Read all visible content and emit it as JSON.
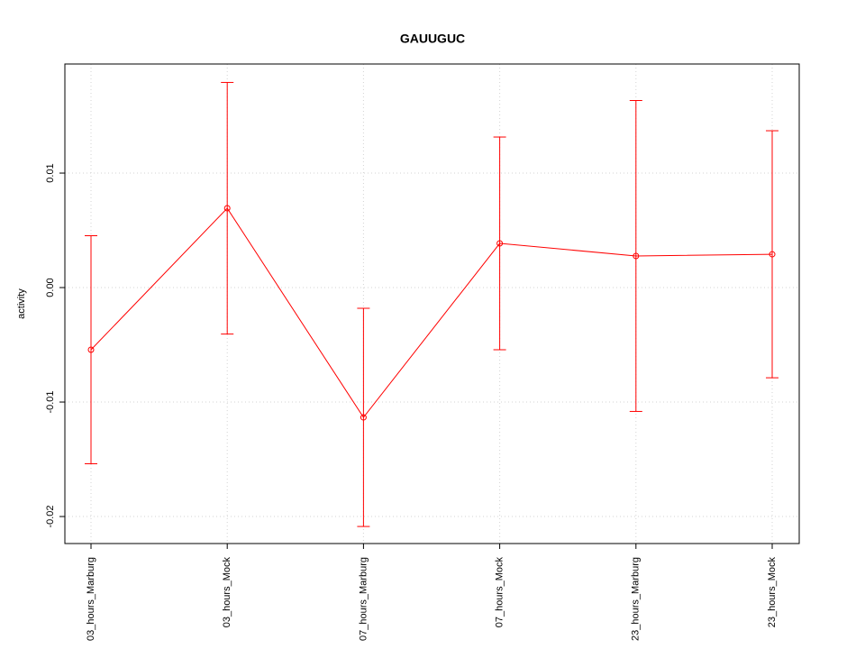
{
  "chart_data": {
    "type": "line",
    "title": "GAUUGUC",
    "y_label": "activity",
    "categories": [
      "03_hours_Marburg",
      "03_hours_Mock",
      "07_hours_Marburg",
      "07_hours_Mock",
      "23_hours_Marburg",
      "23_hours_Mock"
    ],
    "series": [
      {
        "name": "GAUUGUC",
        "color": "#ff0000",
        "values": [
          -0.00543,
          0.00693,
          -0.01134,
          0.00386,
          0.00276,
          0.00291
        ],
        "errors": [
          0.00996,
          0.01099,
          0.00953,
          0.00929,
          0.01358,
          0.01079
        ]
      }
    ],
    "ylim": [
      -0.02236,
      0.01953
    ],
    "yticks": [
      -0.02,
      -0.01,
      {
        "value": 0,
        "label": "0.00"
      },
      0.01
    ],
    "grid": true
  }
}
